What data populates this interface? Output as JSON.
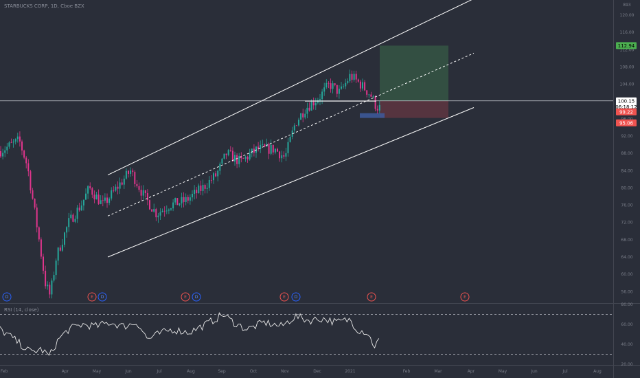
{
  "header": {
    "title": "STARBUCKS CORP, 1D, Cboe BZX"
  },
  "rsi_header": {
    "title": "RSI (14, close)"
  },
  "colors": {
    "bull": "#26a69a",
    "bear": "#ef5350",
    "bear_body": "#e0358c",
    "profit": "#3b6b4a",
    "loss": "#7a3a45",
    "channel": "#ffffff",
    "entry_marker": "#3d5a9e"
  },
  "price_tags": [
    {
      "label": "112.94",
      "price": 112.94,
      "bg": "#4caf50",
      "fg": "#000000"
    },
    {
      "label": "100.15",
      "price": 100.15,
      "bg": "#ffffff",
      "fg": "#000000"
    },
    {
      "label": "06:18:12",
      "price": 98.8,
      "bg": "#ffffff",
      "fg": "#000000",
      "countdown": true
    },
    {
      "label": "99.22",
      "price": 97.6,
      "bg": "#ef5350",
      "fg": "#ffffff"
    },
    {
      "label": "95.06",
      "price": 95.06,
      "bg": "#ef5350",
      "fg": "#ffffff"
    }
  ],
  "events": [
    {
      "label": "D",
      "kind": "dividend",
      "x": 10
    },
    {
      "label": "E",
      "kind": "earnings",
      "x": 134
    },
    {
      "label": "D",
      "kind": "dividend",
      "x": 149
    },
    {
      "label": "E",
      "kind": "earnings",
      "x": 270
    },
    {
      "label": "D",
      "kind": "dividend",
      "x": 286
    },
    {
      "label": "E",
      "kind": "earnings",
      "x": 414
    },
    {
      "label": "D",
      "kind": "dividend",
      "x": 431
    },
    {
      "label": "E",
      "kind": "earnings",
      "x": 541
    },
    {
      "label": "E",
      "kind": "earnings",
      "x": 677
    }
  ],
  "chart_data": {
    "type": "candlestick",
    "title": "STARBUCKS CORP, 1D, Cboe BZX",
    "y_ticks": [
      120.0,
      116.0,
      112.0,
      108.0,
      104.0,
      100.0,
      96.0,
      92.0,
      88.0,
      84.0,
      80.0,
      76.0,
      72.0,
      68.0,
      64.0,
      60.0,
      56.0
    ],
    "ylim": [
      53.5,
      123.5
    ],
    "x_ticks": [
      "Feb",
      "Apr",
      "May",
      "Jun",
      "Jul",
      "Aug",
      "Sep",
      "Oct",
      "Nov",
      "Dec",
      "2021",
      "Feb",
      "Mar",
      "Apr",
      "May",
      "Jun",
      "Jul",
      "Aug",
      "Sep"
    ],
    "anchors": [
      [
        0,
        88.5
      ],
      [
        28,
        91
      ],
      [
        40,
        85
      ],
      [
        55,
        70
      ],
      [
        66,
        58
      ],
      [
        73,
        55
      ],
      [
        82,
        64
      ],
      [
        100,
        72
      ],
      [
        118,
        76
      ],
      [
        130,
        80
      ],
      [
        150,
        76
      ],
      [
        175,
        81
      ],
      [
        190,
        84
      ],
      [
        210,
        78
      ],
      [
        228,
        74
      ],
      [
        246,
        76
      ],
      [
        270,
        77
      ],
      [
        295,
        80
      ],
      [
        315,
        83
      ],
      [
        330,
        88
      ],
      [
        350,
        86
      ],
      [
        375,
        89
      ],
      [
        400,
        89
      ],
      [
        415,
        87
      ],
      [
        430,
        95
      ],
      [
        445,
        98.5
      ],
      [
        465,
        101
      ],
      [
        480,
        104
      ],
      [
        495,
        102
      ],
      [
        510,
        106
      ],
      [
        525,
        104
      ],
      [
        540,
        101.5
      ],
      [
        548,
        98.8
      ],
      [
        553,
        98.5
      ]
    ],
    "annotations": {
      "channel_upper": [
        [
          157,
          83
        ],
        [
          690,
          123.8
        ]
      ],
      "channel_mid": [
        [
          157,
          73.5
        ],
        [
          690,
          111.2
        ]
      ],
      "channel_lower": [
        [
          157,
          64
        ],
        [
          690,
          98.6
        ]
      ],
      "horizontal_line": 100.15,
      "range_line": {
        "x": [
          444,
          548
        ],
        "price": 100.1
      },
      "position": {
        "x": [
          553,
          653
        ],
        "entry": 100.15,
        "target": 112.94,
        "stop": 96.2
      },
      "entry_marker": {
        "x": [
          524,
          560
        ],
        "price": [
          96.2,
          97.3
        ]
      }
    },
    "rsi": {
      "ylim": [
        20,
        80
      ],
      "ticks": [
        80.0,
        60.0,
        40.0,
        20.0
      ],
      "bands": [
        70,
        30
      ],
      "anchors": [
        [
          0,
          55
        ],
        [
          15,
          48
        ],
        [
          30,
          40
        ],
        [
          45,
          32
        ],
        [
          60,
          35
        ],
        [
          72,
          28
        ],
        [
          85,
          45
        ],
        [
          100,
          55
        ],
        [
          120,
          60
        ],
        [
          140,
          58
        ],
        [
          160,
          62
        ],
        [
          180,
          58
        ],
        [
          200,
          62
        ],
        [
          215,
          45
        ],
        [
          230,
          50
        ],
        [
          250,
          55
        ],
        [
          275,
          52
        ],
        [
          300,
          60
        ],
        [
          325,
          70
        ],
        [
          340,
          62
        ],
        [
          360,
          55
        ],
        [
          385,
          62
        ],
        [
          410,
          58
        ],
        [
          430,
          68
        ],
        [
          450,
          64
        ],
        [
          470,
          66
        ],
        [
          490,
          62
        ],
        [
          510,
          65
        ],
        [
          520,
          55
        ],
        [
          535,
          52
        ],
        [
          545,
          38
        ],
        [
          553,
          45
        ]
      ]
    }
  }
}
